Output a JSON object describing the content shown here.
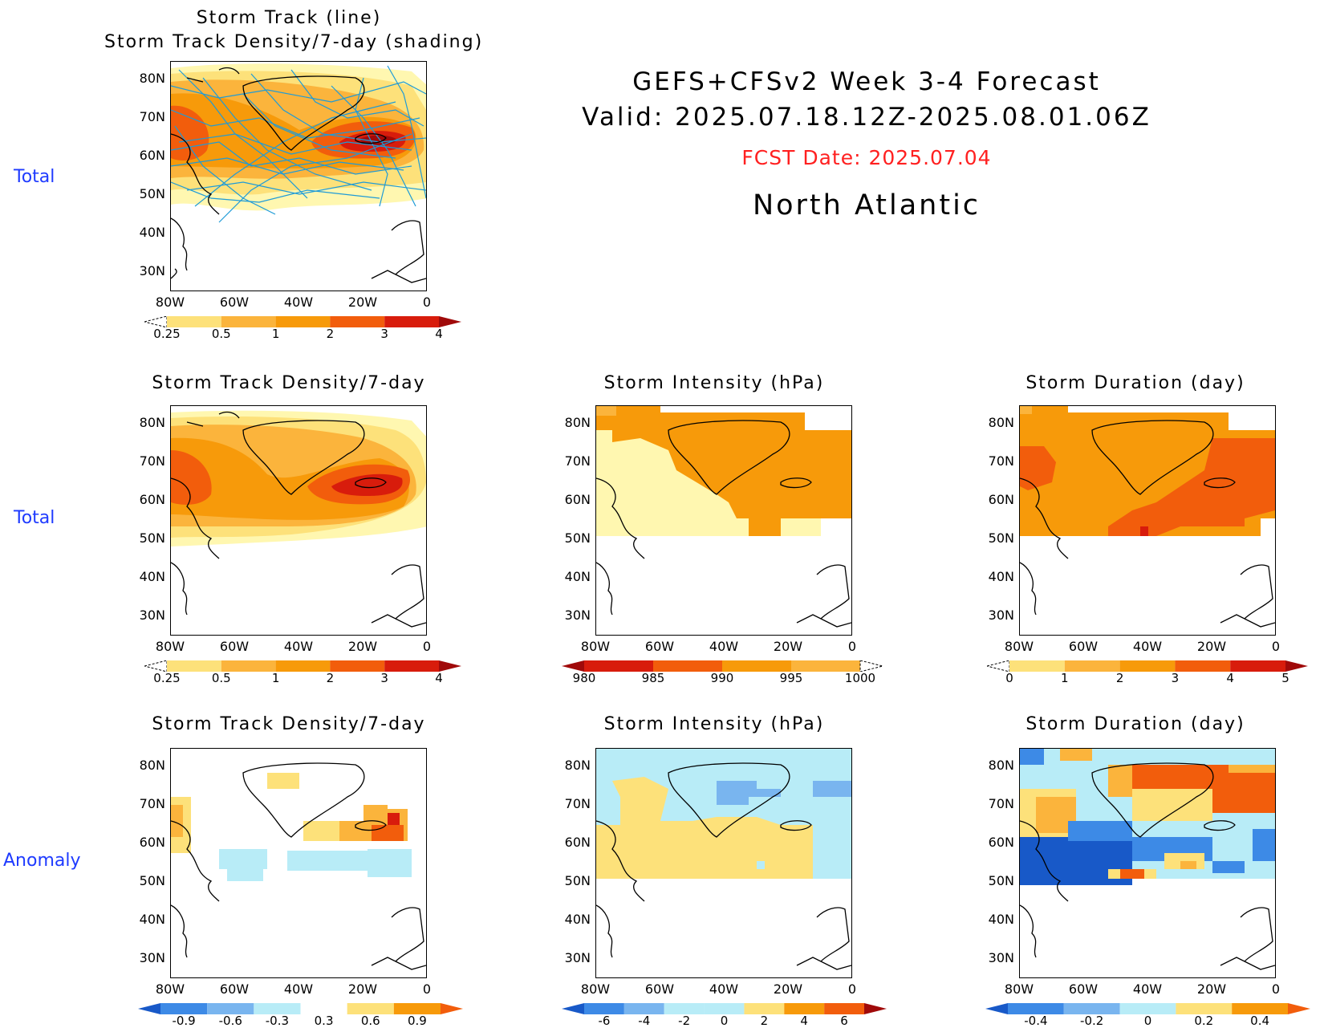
{
  "header": {
    "title_line1": "GEFS+CFSv2 Week 3-4 Forecast",
    "title_line2": "Valid: 2025.07.18.12Z-2025.08.01.06Z",
    "fcst_date": "FCST Date: 2025.07.04",
    "region": "North Atlantic"
  },
  "row_labels": {
    "row1": "Total",
    "row2": "Total",
    "row3": "Anomaly"
  },
  "panels": {
    "p1": {
      "title_line1": "Storm Track (line)",
      "title_line2": "Storm Track Density/7-day (shading)"
    },
    "p2": {
      "title": "Storm Track Density/7-day"
    },
    "p3": {
      "title": "Storm Intensity (hPa)"
    },
    "p4": {
      "title": "Storm Duration (day)"
    },
    "p5": {
      "title": "Storm Track Density/7-day"
    },
    "p6": {
      "title": "Storm Intensity (hPa)"
    },
    "p7": {
      "title": "Storm Duration (day)"
    }
  },
  "axes": {
    "lat_ticks": [
      "80N",
      "70N",
      "60N",
      "50N",
      "40N",
      "30N"
    ],
    "lon_ticks": [
      "80W",
      "60W",
      "40W",
      "20W",
      "0"
    ]
  },
  "colorbars": {
    "density_total": [
      "0.25",
      "0.5",
      "1",
      "2",
      "3",
      "4"
    ],
    "intensity_total": [
      "980",
      "985",
      "990",
      "995",
      "1000"
    ],
    "duration_total": [
      "0",
      "1",
      "2",
      "3",
      "4",
      "5"
    ],
    "density_anom": [
      "-0.9",
      "-0.6",
      "-0.3",
      "0.3",
      "0.6",
      "0.9"
    ],
    "intensity_anom": [
      "-6",
      "-4",
      "-2",
      "0",
      "2",
      "4",
      "6"
    ],
    "duration_anom": [
      "-0.4",
      "-0.2",
      "0",
      "0.2",
      "0.4"
    ]
  },
  "colors": {
    "row_label": "#1f3bff",
    "fcst_date": "#ff2020",
    "track_line": "#1e9bd7",
    "warm_1": "#fff7b0",
    "warm_2": "#fde17a",
    "warm_3": "#fbb43c",
    "warm_4": "#f79a0a",
    "warm_5": "#f25d0c",
    "warm_6": "#d81c0c",
    "warm_7": "#a00a0a",
    "cool_1": "#b8ecf7",
    "cool_2": "#79b5ef",
    "cool_3": "#3d8ae6",
    "cool_4": "#1859c8"
  }
}
